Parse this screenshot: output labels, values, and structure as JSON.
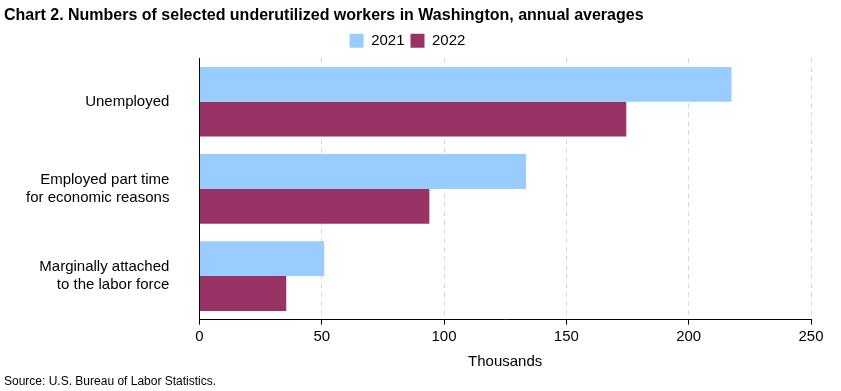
{
  "chart_data": {
    "type": "bar",
    "orientation": "horizontal",
    "title": "Chart 2. Numbers of selected underutilized workers in Washington, annual averages",
    "x_label": "Thousands",
    "annotations": [
      "Source: U.S. Bureau of Labor Statistics."
    ],
    "categories": [
      "Unemployed",
      "Employed part time for economic reasons",
      "Marginally attached to the labor force"
    ],
    "series": [
      {
        "name": "2021",
        "color": "#99ccff",
        "values": [
          217.5,
          133.5,
          51
        ]
      },
      {
        "name": "2022",
        "color": "#993366",
        "values": [
          174.5,
          94,
          35.5
        ]
      }
    ],
    "xlim": [
      0,
      250
    ],
    "xticks": [
      0,
      50,
      100,
      150,
      200,
      250
    ],
    "grid": true,
    "legend": "top"
  }
}
